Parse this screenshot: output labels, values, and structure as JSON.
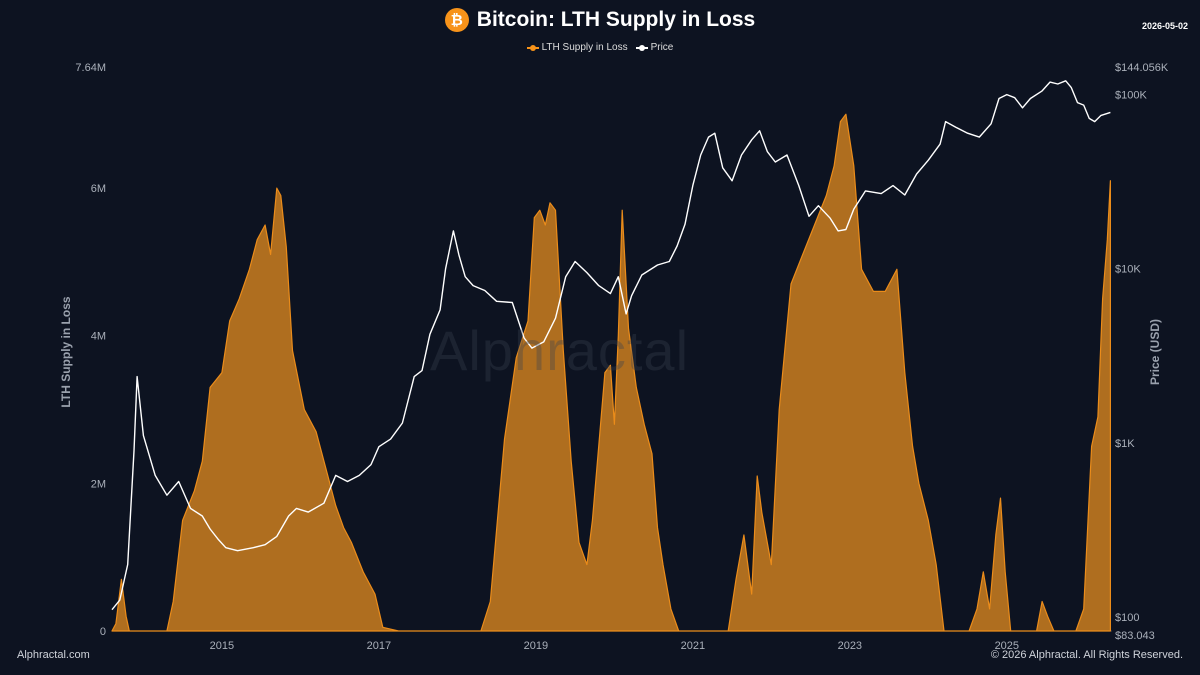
{
  "header": {
    "coin_symbol": "₿",
    "title": "Bitcoin: LTH Supply in Loss",
    "date": "2026-05-02"
  },
  "legend": [
    {
      "label": "LTH Supply in Loss",
      "color": "#f7931a"
    },
    {
      "label": "Price",
      "color": "#ffffff"
    }
  ],
  "watermark": "Alphractal",
  "footer": {
    "left": "Alphractal.com",
    "right": "© 2026 Alphractal. All Rights Reserved."
  },
  "colors": {
    "background": "#0d1321",
    "area_fill": "#b8731f",
    "area_stroke": "#f7931a",
    "price_line": "#ffffff",
    "axis_text": "#aab0ba"
  },
  "chart_data": {
    "type": "area",
    "title": "Bitcoin: LTH Supply in Loss",
    "xlabel": "",
    "ylabel_left": "LTH Supply in Loss",
    "ylabel_right": "Price (USD)",
    "x_range": [
      2013.6,
      2026.34
    ],
    "y_left_range": [
      0,
      7640000
    ],
    "y_right_range": [
      83.043,
      144056
    ],
    "y_right_scale": "log",
    "grid": false,
    "legend_position": "top-center",
    "x_ticks": [
      {
        "value": 2015,
        "label": "2015"
      },
      {
        "value": 2017,
        "label": "2017"
      },
      {
        "value": 2019,
        "label": "2019"
      },
      {
        "value": 2021,
        "label": "2021"
      },
      {
        "value": 2023,
        "label": "2023"
      },
      {
        "value": 2025,
        "label": "2025"
      }
    ],
    "y_left_ticks": [
      {
        "value": 0,
        "label": "0"
      },
      {
        "value": 2000000,
        "label": "2M"
      },
      {
        "value": 4000000,
        "label": "4M"
      },
      {
        "value": 6000000,
        "label": "6M"
      },
      {
        "value": 7640000,
        "label": "7.64M"
      }
    ],
    "y_right_ticks": [
      {
        "value": 83.043,
        "label": "$83.043"
      },
      {
        "value": 100,
        "label": "$100"
      },
      {
        "value": 1000,
        "label": "$1K"
      },
      {
        "value": 10000,
        "label": "$10K"
      },
      {
        "value": 100000,
        "label": "$100K"
      },
      {
        "value": 144056,
        "label": "$144.056K"
      }
    ],
    "series": [
      {
        "name": "LTH Supply in Loss",
        "axis": "left",
        "points": [
          [
            2013.6,
            0
          ],
          [
            2013.65,
            100000
          ],
          [
            2013.72,
            700000
          ],
          [
            2013.78,
            200000
          ],
          [
            2013.82,
            0
          ],
          [
            2014.3,
            0
          ],
          [
            2014.38,
            400000
          ],
          [
            2014.5,
            1500000
          ],
          [
            2014.65,
            1900000
          ],
          [
            2014.75,
            2300000
          ],
          [
            2014.85,
            3300000
          ],
          [
            2015.0,
            3500000
          ],
          [
            2015.1,
            4200000
          ],
          [
            2015.22,
            4500000
          ],
          [
            2015.35,
            4900000
          ],
          [
            2015.45,
            5300000
          ],
          [
            2015.55,
            5500000
          ],
          [
            2015.62,
            5100000
          ],
          [
            2015.7,
            6000000
          ],
          [
            2015.75,
            5900000
          ],
          [
            2015.82,
            5200000
          ],
          [
            2015.9,
            3800000
          ],
          [
            2016.05,
            3000000
          ],
          [
            2016.2,
            2700000
          ],
          [
            2016.35,
            2100000
          ],
          [
            2016.45,
            1700000
          ],
          [
            2016.55,
            1400000
          ],
          [
            2016.65,
            1200000
          ],
          [
            2016.8,
            800000
          ],
          [
            2016.95,
            500000
          ],
          [
            2017.05,
            50000
          ],
          [
            2017.25,
            0
          ],
          [
            2018.3,
            0
          ],
          [
            2018.42,
            400000
          ],
          [
            2018.6,
            2600000
          ],
          [
            2018.75,
            3700000
          ],
          [
            2018.9,
            4200000
          ],
          [
            2018.98,
            5600000
          ],
          [
            2019.05,
            5700000
          ],
          [
            2019.12,
            5500000
          ],
          [
            2019.18,
            5800000
          ],
          [
            2019.25,
            5700000
          ],
          [
            2019.35,
            3800000
          ],
          [
            2019.45,
            2300000
          ],
          [
            2019.55,
            1200000
          ],
          [
            2019.65,
            900000
          ],
          [
            2019.72,
            1500000
          ],
          [
            2019.8,
            2500000
          ],
          [
            2019.88,
            3500000
          ],
          [
            2019.95,
            3600000
          ],
          [
            2020.0,
            2800000
          ],
          [
            2020.05,
            4000000
          ],
          [
            2020.1,
            5700000
          ],
          [
            2020.18,
            4100000
          ],
          [
            2020.28,
            3300000
          ],
          [
            2020.38,
            2800000
          ],
          [
            2020.48,
            2400000
          ],
          [
            2020.55,
            1400000
          ],
          [
            2020.62,
            900000
          ],
          [
            2020.72,
            300000
          ],
          [
            2020.82,
            0
          ],
          [
            2021.45,
            0
          ],
          [
            2021.55,
            700000
          ],
          [
            2021.65,
            1300000
          ],
          [
            2021.75,
            500000
          ],
          [
            2021.82,
            2100000
          ],
          [
            2021.88,
            1600000
          ],
          [
            2022.0,
            900000
          ],
          [
            2022.1,
            3000000
          ],
          [
            2022.25,
            4700000
          ],
          [
            2022.4,
            5100000
          ],
          [
            2022.55,
            5500000
          ],
          [
            2022.7,
            5900000
          ],
          [
            2022.8,
            6300000
          ],
          [
            2022.88,
            6900000
          ],
          [
            2022.95,
            7000000
          ],
          [
            2023.05,
            6300000
          ],
          [
            2023.15,
            4900000
          ],
          [
            2023.3,
            4600000
          ],
          [
            2023.45,
            4600000
          ],
          [
            2023.6,
            4900000
          ],
          [
            2023.7,
            3500000
          ],
          [
            2023.8,
            2500000
          ],
          [
            2023.88,
            2000000
          ],
          [
            2024.0,
            1500000
          ],
          [
            2024.1,
            900000
          ],
          [
            2024.2,
            0
          ],
          [
            2024.52,
            0
          ],
          [
            2024.62,
            300000
          ],
          [
            2024.7,
            800000
          ],
          [
            2024.78,
            300000
          ],
          [
            2024.86,
            1300000
          ],
          [
            2024.92,
            1800000
          ],
          [
            2024.98,
            800000
          ],
          [
            2025.05,
            0
          ],
          [
            2025.38,
            0
          ],
          [
            2025.45,
            400000
          ],
          [
            2025.52,
            200000
          ],
          [
            2025.6,
            0
          ],
          [
            2025.88,
            0
          ],
          [
            2025.98,
            300000
          ],
          [
            2026.08,
            2500000
          ],
          [
            2026.16,
            2900000
          ],
          [
            2026.22,
            4500000
          ],
          [
            2026.28,
            5300000
          ],
          [
            2026.32,
            6100000
          ]
        ]
      },
      {
        "name": "Price",
        "axis": "right",
        "points": [
          [
            2013.6,
            110
          ],
          [
            2013.7,
            125
          ],
          [
            2013.8,
            200
          ],
          [
            2013.88,
            900
          ],
          [
            2013.92,
            2400
          ],
          [
            2014.0,
            1100
          ],
          [
            2014.15,
            650
          ],
          [
            2014.3,
            500
          ],
          [
            2014.45,
            600
          ],
          [
            2014.6,
            420
          ],
          [
            2014.75,
            380
          ],
          [
            2014.85,
            320
          ],
          [
            2014.95,
            280
          ],
          [
            2015.05,
            250
          ],
          [
            2015.2,
            240
          ],
          [
            2015.4,
            250
          ],
          [
            2015.55,
            260
          ],
          [
            2015.7,
            290
          ],
          [
            2015.85,
            380
          ],
          [
            2015.95,
            420
          ],
          [
            2016.1,
            400
          ],
          [
            2016.3,
            450
          ],
          [
            2016.45,
            650
          ],
          [
            2016.6,
            600
          ],
          [
            2016.75,
            650
          ],
          [
            2016.9,
            750
          ],
          [
            2017.0,
            950
          ],
          [
            2017.15,
            1050
          ],
          [
            2017.3,
            1300
          ],
          [
            2017.45,
            2400
          ],
          [
            2017.55,
            2600
          ],
          [
            2017.65,
            4200
          ],
          [
            2017.78,
            5800
          ],
          [
            2017.85,
            10000
          ],
          [
            2017.95,
            16500
          ],
          [
            2018.02,
            12000
          ],
          [
            2018.1,
            9000
          ],
          [
            2018.2,
            8000
          ],
          [
            2018.35,
            7500
          ],
          [
            2018.5,
            6500
          ],
          [
            2018.7,
            6400
          ],
          [
            2018.85,
            4000
          ],
          [
            2018.95,
            3500
          ],
          [
            2019.1,
            3800
          ],
          [
            2019.25,
            5200
          ],
          [
            2019.38,
            9000
          ],
          [
            2019.5,
            11000
          ],
          [
            2019.65,
            9500
          ],
          [
            2019.8,
            8000
          ],
          [
            2019.95,
            7200
          ],
          [
            2020.05,
            9000
          ],
          [
            2020.15,
            5500
          ],
          [
            2020.22,
            7000
          ],
          [
            2020.35,
            9200
          ],
          [
            2020.55,
            10500
          ],
          [
            2020.7,
            11000
          ],
          [
            2020.8,
            13500
          ],
          [
            2020.9,
            18000
          ],
          [
            2021.0,
            30000
          ],
          [
            2021.1,
            45000
          ],
          [
            2021.2,
            57000
          ],
          [
            2021.28,
            60000
          ],
          [
            2021.38,
            38000
          ],
          [
            2021.5,
            32000
          ],
          [
            2021.62,
            45000
          ],
          [
            2021.75,
            55000
          ],
          [
            2021.85,
            62000
          ],
          [
            2021.95,
            47000
          ],
          [
            2022.05,
            41000
          ],
          [
            2022.2,
            45000
          ],
          [
            2022.35,
            30000
          ],
          [
            2022.48,
            20000
          ],
          [
            2022.6,
            23000
          ],
          [
            2022.75,
            19500
          ],
          [
            2022.85,
            16500
          ],
          [
            2022.95,
            16800
          ],
          [
            2023.05,
            22000
          ],
          [
            2023.2,
            28000
          ],
          [
            2023.4,
            27000
          ],
          [
            2023.55,
            30000
          ],
          [
            2023.7,
            26500
          ],
          [
            2023.85,
            35000
          ],
          [
            2024.0,
            42000
          ],
          [
            2024.15,
            52000
          ],
          [
            2024.22,
            70000
          ],
          [
            2024.35,
            65000
          ],
          [
            2024.5,
            60000
          ],
          [
            2024.65,
            57000
          ],
          [
            2024.8,
            68000
          ],
          [
            2024.9,
            95000
          ],
          [
            2025.0,
            100000
          ],
          [
            2025.1,
            96000
          ],
          [
            2025.2,
            84000
          ],
          [
            2025.3,
            95000
          ],
          [
            2025.45,
            105000
          ],
          [
            2025.55,
            118000
          ],
          [
            2025.65,
            115000
          ],
          [
            2025.75,
            120000
          ],
          [
            2025.82,
            110000
          ],
          [
            2025.9,
            90000
          ],
          [
            2025.98,
            87000
          ],
          [
            2026.05,
            73000
          ],
          [
            2026.12,
            70000
          ],
          [
            2026.2,
            76000
          ],
          [
            2026.28,
            78000
          ],
          [
            2026.32,
            79000
          ]
        ]
      }
    ]
  }
}
